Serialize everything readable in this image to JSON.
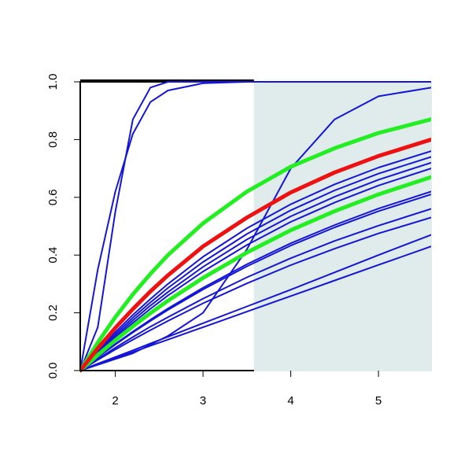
{
  "chart_data": {
    "type": "line",
    "x": [
      1.6,
      1.8,
      2.0,
      2.2,
      2.4,
      2.6,
      3.0,
      3.5,
      4.0,
      4.5,
      5.0,
      5.6
    ],
    "xlim": [
      1.6,
      5.6
    ],
    "ylim": [
      0,
      1
    ],
    "xticks": [
      2,
      3,
      4,
      5
    ],
    "yticks": [
      {
        "value": 0,
        "label": "0.0"
      },
      {
        "value": 0.2,
        "label": "0.2"
      },
      {
        "value": 0.4,
        "label": "0.4"
      },
      {
        "value": 0.6,
        "label": "0.6"
      },
      {
        "value": 0.8,
        "label": "0.8"
      },
      {
        "value": 1,
        "label": "1.0"
      }
    ],
    "shaded_region": {
      "xmin": 3.58,
      "color": "#e0ecec"
    },
    "series": [
      {
        "color": "#1515d8",
        "line_width": 2,
        "values": [
          0,
          0.35,
          0.62,
          0.82,
          0.93,
          0.97,
          0.995,
          1,
          1,
          1,
          1,
          1
        ]
      },
      {
        "color": "#1515d8",
        "line_width": 2,
        "values": [
          0,
          0.15,
          0.55,
          0.87,
          0.98,
          1,
          1,
          1,
          1,
          1,
          1,
          1
        ]
      },
      {
        "color": "#1515d8",
        "line_width": 2,
        "values": [
          0,
          0.02,
          0.04,
          0.06,
          0.09,
          0.12,
          0.2,
          0.42,
          0.7,
          0.87,
          0.95,
          0.98
        ]
      },
      {
        "color": "#1515d8",
        "line_width": 2,
        "values": [
          0,
          0.069,
          0.133,
          0.193,
          0.248,
          0.3,
          0.394,
          0.493,
          0.576,
          0.645,
          0.703,
          0.76
        ]
      },
      {
        "color": "#1515d8",
        "line_width": 2,
        "values": [
          0,
          0.065,
          0.126,
          0.183,
          0.236,
          0.286,
          0.376,
          0.473,
          0.555,
          0.624,
          0.682,
          0.74
        ]
      },
      {
        "color": "#1515d8",
        "line_width": 2,
        "values": [
          0,
          0.062,
          0.119,
          0.174,
          0.225,
          0.272,
          0.359,
          0.454,
          0.534,
          0.602,
          0.661,
          0.72
        ]
      },
      {
        "color": "#1515d8",
        "line_width": 2,
        "values": [
          0,
          0.058,
          0.113,
          0.165,
          0.214,
          0.26,
          0.343,
          0.435,
          0.515,
          0.582,
          0.641,
          0.7
        ]
      },
      {
        "color": "#1515d8",
        "line_width": 2,
        "values": [
          0,
          0.047,
          0.092,
          0.135,
          0.176,
          0.215,
          0.287,
          0.368,
          0.441,
          0.504,
          0.561,
          0.62
        ]
      },
      {
        "color": "#1515d8",
        "line_width": 2,
        "values": [
          0,
          0.046,
          0.09,
          0.132,
          0.172,
          0.21,
          0.281,
          0.361,
          0.433,
          0.496,
          0.552,
          0.61
        ]
      },
      {
        "color": "#1515d8",
        "line_width": 2,
        "values": [
          0,
          0.04,
          0.079,
          0.116,
          0.152,
          0.185,
          0.249,
          0.323,
          0.389,
          0.449,
          0.502,
          0.56
        ]
      },
      {
        "color": "#1515d8",
        "line_width": 2,
        "values": [
          0,
          0.037,
          0.073,
          0.107,
          0.14,
          0.172,
          0.233,
          0.302,
          0.365,
          0.422,
          0.475,
          0.53
        ]
      },
      {
        "color": "#1515d8",
        "line_width": 2,
        "values": [
          0,
          0.024,
          0.047,
          0.07,
          0.094,
          0.117,
          0.164,
          0.222,
          0.28,
          0.34,
          0.4,
          0.47
        ]
      },
      {
        "color": "#1515d8",
        "line_width": 2,
        "values": [
          0,
          0.021,
          0.043,
          0.064,
          0.086,
          0.107,
          0.15,
          0.204,
          0.258,
          0.312,
          0.366,
          0.43
        ]
      },
      {
        "color": "#22ee22",
        "line_width": 5,
        "values": [
          0,
          0.097,
          0.185,
          0.264,
          0.335,
          0.4,
          0.51,
          0.62,
          0.706,
          0.77,
          0.823,
          0.87
        ]
      },
      {
        "color": "#22ee22",
        "line_width": 5,
        "values": [
          0,
          0.054,
          0.105,
          0.153,
          0.199,
          0.242,
          0.321,
          0.409,
          0.486,
          0.552,
          0.61,
          0.67
        ]
      },
      {
        "color": "#ee1111",
        "line_width": 5,
        "values": [
          0,
          0.077,
          0.148,
          0.213,
          0.274,
          0.33,
          0.43,
          0.53,
          0.617,
          0.686,
          0.743,
          0.8
        ]
      }
    ]
  }
}
